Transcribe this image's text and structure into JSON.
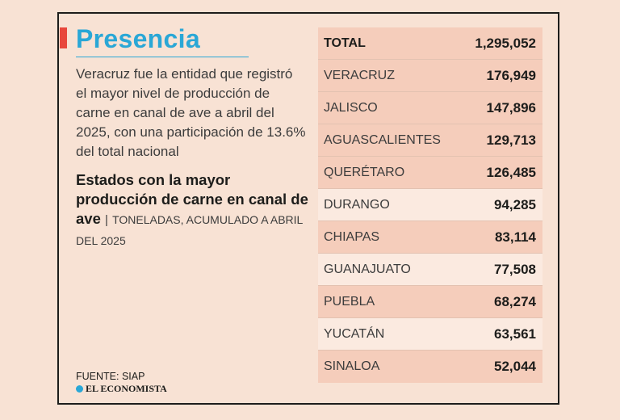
{
  "title": "Presencia",
  "subtitle": "Veracruz fue la entidad que registró el mayor nivel de producción de carne en canal de ave a abril del 2025, con una participación de 13.6% del total nacional",
  "heading": {
    "main": "Estados con la mayor producción de carne en canal de ave",
    "separator": "|",
    "unit": "TONELADAS, ACUMULADO A ABRIL DEL 2025"
  },
  "source": "FUENTE: SIAP",
  "logo": "EL ECONOMISTA",
  "colors": {
    "title": "#2aa7d6",
    "accent": "#e8473c",
    "background": "#f8e2d4",
    "row_shaded": "#f5cdbb",
    "row_light": "#fbeae0"
  },
  "chart_data": {
    "type": "table",
    "total": {
      "label": "TOTAL",
      "display": "1,295,052",
      "value": 1295052
    },
    "rows": [
      {
        "label": "VERACRUZ",
        "display": "176,949",
        "value": 176949
      },
      {
        "label": "JALISCO",
        "display": "147,896",
        "value": 147896
      },
      {
        "label": "AGUASCALIENTES",
        "display": "129,713",
        "value": 129713
      },
      {
        "label": "QUERÉTARO",
        "display": "126,485",
        "value": 126485
      },
      {
        "label": "DURANGO",
        "display": "94,285",
        "value": 94285
      },
      {
        "label": "CHIAPAS",
        "display": "83,114",
        "value": 83114
      },
      {
        "label": "GUANAJUATO",
        "display": "77,508",
        "value": 77508
      },
      {
        "label": "PUEBLA",
        "display": "68,274",
        "value": 68274
      },
      {
        "label": "YUCATÁN",
        "display": "63,561",
        "value": 63561
      },
      {
        "label": "SINALOA",
        "display": "52,044",
        "value": 52044
      }
    ]
  }
}
